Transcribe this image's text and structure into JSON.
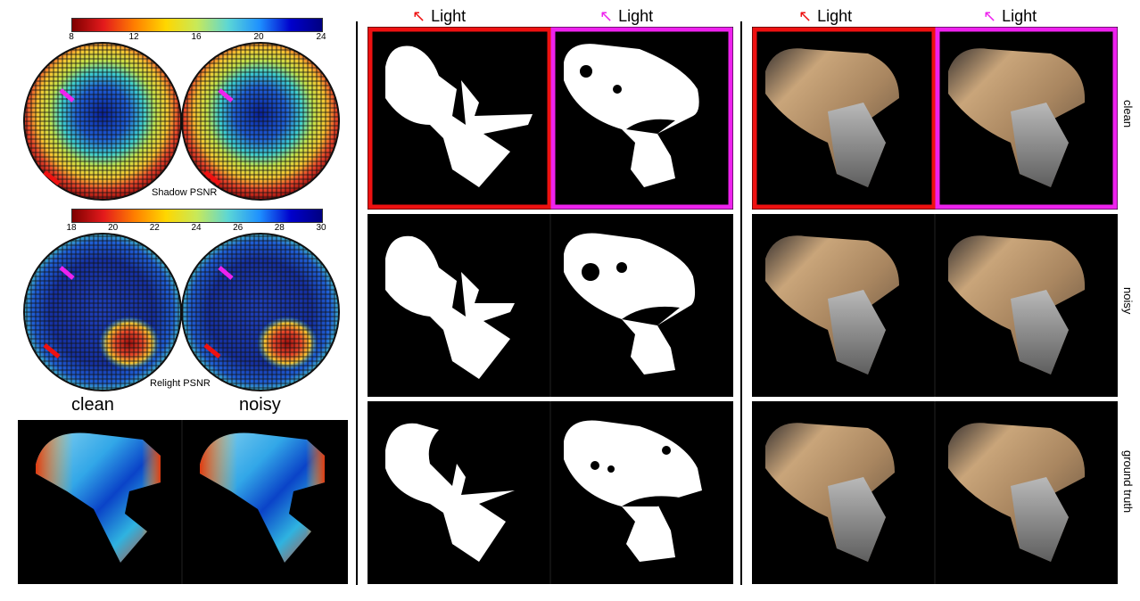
{
  "left": {
    "shadow": {
      "ticks": [
        "8",
        "12",
        "16",
        "20",
        "24"
      ],
      "caption": "Shadow PSNR"
    },
    "relight": {
      "ticks": [
        "18",
        "20",
        "22",
        "24",
        "26",
        "28",
        "30"
      ],
      "caption": "Relight PSNR"
    },
    "depth_labels": {
      "clean": "clean",
      "noisy": "noisy"
    }
  },
  "middle": {
    "header_left": "Light",
    "header_right": "Light"
  },
  "right": {
    "header_left": "Light",
    "header_right": "Light",
    "row_labels": {
      "clean": "clean",
      "noisy": "noisy",
      "gt": "ground truth"
    }
  },
  "colors": {
    "red": "#ee1111",
    "magenta": "#ee22ee"
  }
}
